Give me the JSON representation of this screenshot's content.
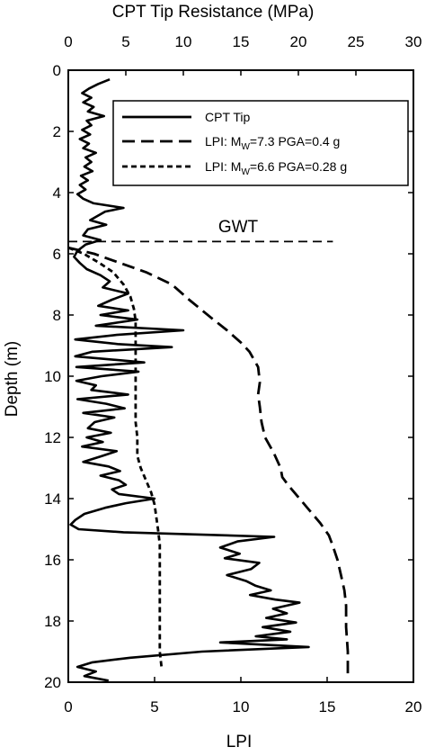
{
  "chart_data": {
    "type": "line",
    "top_axis": {
      "label": "CPT Tip Resistance (MPa)",
      "range": [
        0,
        30
      ],
      "ticks": [
        "0",
        "5",
        "10",
        "15",
        "20",
        "25",
        "30"
      ]
    },
    "bottom_axis": {
      "label": "LPI",
      "range": [
        0,
        20
      ],
      "ticks": [
        "0",
        "5",
        "10",
        "15",
        "20"
      ]
    },
    "y_axis": {
      "label": "Depth (m)",
      "range": [
        0,
        20
      ],
      "inverted": true,
      "ticks": [
        "0",
        "2",
        "4",
        "6",
        "8",
        "10",
        "12",
        "14",
        "16",
        "18",
        "20"
      ]
    },
    "legend": {
      "placement": "top-right",
      "entries": [
        {
          "text": "CPT Tip",
          "style": "solid"
        },
        {
          "text_pre": "LPI: M",
          "sub": "W",
          "text_post": "=7.3 PGA=0.4 g",
          "style": "long-dash"
        },
        {
          "text_pre": "LPI: M",
          "sub": "W",
          "text_post": "=6.6 PGA=0.28 g",
          "style": "short-dash"
        }
      ]
    },
    "annotations": [
      {
        "text": "GWT",
        "depth": 5.6,
        "x_range_mpa": [
          0,
          23
        ]
      }
    ],
    "series": [
      {
        "name": "CPT Tip",
        "axis": "top",
        "points": [
          [
            3.6,
            0.3
          ],
          [
            2.6,
            0.45
          ],
          [
            1.8,
            0.6
          ],
          [
            1.2,
            0.75
          ],
          [
            2.0,
            0.9
          ],
          [
            1.3,
            1.05
          ],
          [
            2.2,
            1.2
          ],
          [
            1.7,
            1.35
          ],
          [
            3.1,
            1.5
          ],
          [
            1.6,
            1.65
          ],
          [
            2.0,
            1.8
          ],
          [
            1.2,
            1.95
          ],
          [
            1.9,
            2.1
          ],
          [
            1.0,
            2.25
          ],
          [
            1.8,
            2.4
          ],
          [
            1.3,
            2.55
          ],
          [
            2.4,
            2.7
          ],
          [
            1.5,
            2.85
          ],
          [
            2.0,
            3.0
          ],
          [
            1.4,
            3.15
          ],
          [
            2.1,
            3.3
          ],
          [
            1.1,
            3.45
          ],
          [
            1.7,
            3.6
          ],
          [
            1.0,
            3.75
          ],
          [
            1.5,
            3.9
          ],
          [
            0.8,
            4.05
          ],
          [
            1.3,
            4.2
          ],
          [
            2.2,
            4.35
          ],
          [
            4.8,
            4.5
          ],
          [
            3.2,
            4.62
          ],
          [
            2.6,
            4.75
          ],
          [
            1.9,
            4.9
          ],
          [
            3.3,
            5.05
          ],
          [
            1.7,
            5.2
          ],
          [
            1.3,
            5.4
          ],
          [
            2.8,
            5.55
          ],
          [
            1.5,
            5.7
          ],
          [
            0.8,
            5.9
          ],
          [
            0.5,
            6.1
          ],
          [
            1.0,
            6.3
          ],
          [
            1.6,
            6.5
          ],
          [
            2.8,
            6.7
          ],
          [
            3.6,
            6.9
          ],
          [
            3.0,
            7.1
          ],
          [
            5.2,
            7.3
          ],
          [
            3.8,
            7.5
          ],
          [
            2.6,
            7.7
          ],
          [
            5.2,
            7.85
          ],
          [
            2.8,
            8.0
          ],
          [
            6.0,
            8.15
          ],
          [
            2.4,
            8.35
          ],
          [
            10.0,
            8.5
          ],
          [
            4.2,
            8.65
          ],
          [
            0.6,
            8.8
          ],
          [
            4.3,
            8.95
          ],
          [
            9.0,
            9.05
          ],
          [
            2.1,
            9.2
          ],
          [
            0.6,
            9.35
          ],
          [
            6.6,
            9.55
          ],
          [
            0.7,
            9.7
          ],
          [
            6.1,
            9.85
          ],
          [
            2.9,
            10.0
          ],
          [
            0.7,
            10.15
          ],
          [
            2.4,
            10.3
          ],
          [
            2.0,
            10.45
          ],
          [
            5.2,
            10.6
          ],
          [
            0.8,
            10.75
          ],
          [
            3.3,
            10.9
          ],
          [
            4.9,
            11.05
          ],
          [
            1.3,
            11.2
          ],
          [
            4.0,
            11.35
          ],
          [
            2.3,
            11.5
          ],
          [
            1.7,
            11.7
          ],
          [
            3.7,
            11.85
          ],
          [
            1.6,
            12.0
          ],
          [
            3.0,
            12.15
          ],
          [
            1.2,
            12.3
          ],
          [
            4.2,
            12.45
          ],
          [
            3.0,
            12.6
          ],
          [
            1.3,
            12.8
          ],
          [
            3.5,
            12.95
          ],
          [
            4.5,
            13.1
          ],
          [
            2.8,
            13.25
          ],
          [
            4.4,
            13.4
          ],
          [
            5.0,
            13.55
          ],
          [
            3.8,
            13.7
          ],
          [
            4.4,
            13.85
          ],
          [
            7.5,
            14.0
          ],
          [
            5.0,
            14.15
          ],
          [
            3.2,
            14.3
          ],
          [
            1.4,
            14.5
          ],
          [
            0.6,
            14.7
          ],
          [
            0.2,
            14.85
          ],
          [
            0.9,
            15.0
          ],
          [
            4.8,
            15.1
          ],
          [
            17.9,
            15.25
          ],
          [
            14.7,
            15.4
          ],
          [
            13.2,
            15.6
          ],
          [
            14.9,
            15.8
          ],
          [
            13.6,
            15.95
          ],
          [
            16.6,
            16.1
          ],
          [
            15.9,
            16.3
          ],
          [
            13.8,
            16.5
          ],
          [
            15.5,
            16.7
          ],
          [
            16.3,
            16.85
          ],
          [
            17.6,
            17.0
          ],
          [
            15.8,
            17.15
          ],
          [
            18.0,
            17.3
          ],
          [
            20.1,
            17.4
          ],
          [
            17.8,
            17.6
          ],
          [
            19.0,
            17.75
          ],
          [
            17.2,
            17.9
          ],
          [
            19.8,
            18.05
          ],
          [
            16.9,
            18.2
          ],
          [
            19.3,
            18.35
          ],
          [
            16.3,
            18.5
          ],
          [
            19.0,
            18.6
          ],
          [
            13.2,
            18.7
          ],
          [
            20.9,
            18.85
          ],
          [
            11.6,
            19.0
          ],
          [
            5.4,
            19.2
          ],
          [
            2.1,
            19.35
          ],
          [
            0.8,
            19.5
          ],
          [
            2.4,
            19.65
          ],
          [
            1.4,
            19.8
          ],
          [
            3.5,
            19.95
          ]
        ]
      },
      {
        "name": "LPI: MW=7.3 PGA=0.4 g",
        "axis": "bottom",
        "points": [
          [
            0.0,
            5.8
          ],
          [
            1.5,
            6.0
          ],
          [
            3.0,
            6.3
          ],
          [
            4.5,
            6.6
          ],
          [
            6.0,
            7.0
          ],
          [
            7.0,
            7.5
          ],
          [
            8.3,
            8.1
          ],
          [
            9.2,
            8.5
          ],
          [
            10.0,
            8.9
          ],
          [
            10.5,
            9.2
          ],
          [
            11.0,
            9.7
          ],
          [
            11.1,
            10.2
          ],
          [
            11.0,
            10.6
          ],
          [
            11.1,
            11.0
          ],
          [
            11.2,
            11.5
          ],
          [
            11.4,
            12.0
          ],
          [
            11.9,
            12.5
          ],
          [
            12.3,
            13.0
          ],
          [
            12.4,
            13.3
          ],
          [
            12.8,
            13.6
          ],
          [
            13.4,
            14.0
          ],
          [
            14.0,
            14.4
          ],
          [
            14.6,
            14.8
          ],
          [
            15.1,
            15.2
          ],
          [
            15.3,
            15.5
          ],
          [
            15.6,
            16.0
          ],
          [
            15.8,
            16.5
          ],
          [
            16.0,
            17.0
          ],
          [
            16.1,
            17.5
          ],
          [
            16.1,
            18.2
          ],
          [
            16.2,
            19.0
          ],
          [
            16.2,
            19.9
          ]
        ]
      },
      {
        "name": "LPI: MW=6.6 PGA=0.28 g",
        "axis": "bottom",
        "points": [
          [
            0.0,
            5.8
          ],
          [
            0.9,
            6.0
          ],
          [
            1.8,
            6.3
          ],
          [
            2.6,
            6.6
          ],
          [
            3.2,
            7.0
          ],
          [
            3.6,
            7.4
          ],
          [
            3.8,
            7.8
          ],
          [
            3.9,
            8.2
          ],
          [
            3.9,
            8.8
          ],
          [
            3.9,
            9.5
          ],
          [
            3.9,
            10.5
          ],
          [
            3.9,
            11.5
          ],
          [
            4.0,
            12.0
          ],
          [
            4.0,
            12.6
          ],
          [
            4.2,
            13.0
          ],
          [
            4.5,
            13.4
          ],
          [
            4.8,
            13.8
          ],
          [
            5.0,
            14.2
          ],
          [
            5.1,
            14.6
          ],
          [
            5.2,
            15.0
          ],
          [
            5.3,
            15.5
          ],
          [
            5.3,
            16.5
          ],
          [
            5.3,
            17.5
          ],
          [
            5.3,
            18.5
          ],
          [
            5.3,
            19.0
          ],
          [
            5.4,
            19.5
          ]
        ]
      }
    ]
  }
}
